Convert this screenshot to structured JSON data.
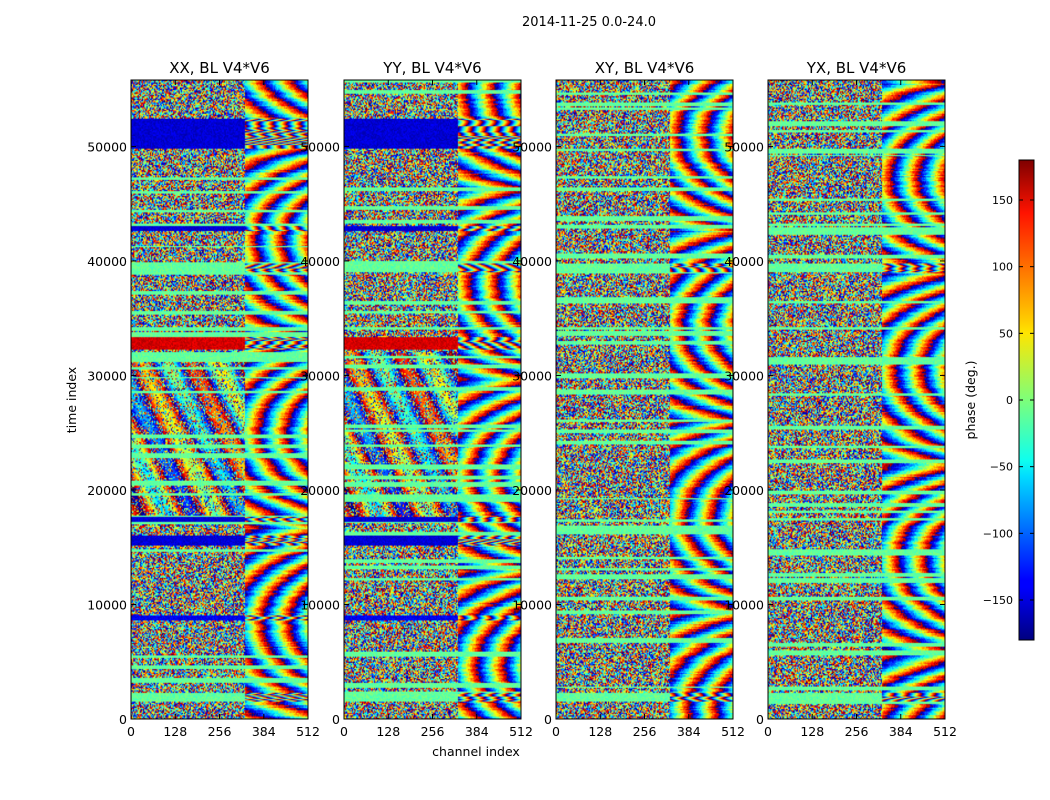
{
  "figure": {
    "suptitle": "2014-11-25 0.0-24.0"
  },
  "chart_data": {
    "type": "heatmap",
    "title": "2014-11-25 0.0-24.0",
    "xlabel": "channel index",
    "ylabel": "time index",
    "colorbar_label": "phase (deg.)",
    "colormap": "jet",
    "color_range": [
      -180,
      180
    ],
    "colorbar_ticks": [
      150,
      100,
      50,
      0,
      -50,
      -100,
      -150
    ],
    "colorbar_tick_labels": [
      "150",
      "100",
      "50",
      "0",
      "−50",
      "−100",
      "−150"
    ],
    "xlim": [
      0,
      512
    ],
    "ylim": [
      0,
      55800
    ],
    "x_ticks": [
      0,
      128,
      256,
      384,
      512
    ],
    "y_ticks": [
      0,
      10000,
      20000,
      30000,
      40000,
      50000
    ],
    "panels": [
      {
        "title": "XX, BL V4*V6",
        "polarization": "XX",
        "baseline": "V4*V6"
      },
      {
        "title": "YY, BL V4*V6",
        "polarization": "YY",
        "baseline": "V4*V6"
      },
      {
        "title": "XY, BL V4*V6",
        "polarization": "XY",
        "baseline": "V4*V6"
      },
      {
        "title": "YX, BL V4*V6",
        "polarization": "YX",
        "baseline": "V4*V6"
      }
    ],
    "features": {
      "flagged_time_bands_phase_deg": [
        {
          "time_range": [
            1500,
            2300
          ],
          "phase": -10,
          "panels": [
            "XX",
            "YY",
            "XY",
            "YX"
          ]
        },
        {
          "time_range": [
            8600,
            9100
          ],
          "phase": -140,
          "panels": [
            "XX",
            "YY"
          ]
        },
        {
          "time_range": [
            15200,
            16000
          ],
          "phase": -150,
          "panels": [
            "XX",
            "YY"
          ]
        },
        {
          "time_range": [
            17200,
            17700
          ],
          "phase": -150,
          "panels": [
            "XX",
            "YY"
          ]
        },
        {
          "time_range": [
            32300,
            33400
          ],
          "phase": 150,
          "panels": [
            "XX",
            "YY"
          ]
        },
        {
          "time_range": [
            39000,
            39800
          ],
          "phase": -10,
          "panels": [
            "XX",
            "YY",
            "XY",
            "YX"
          ]
        },
        {
          "time_range": [
            42600,
            43100
          ],
          "phase": -150,
          "panels": [
            "XX",
            "YY"
          ]
        },
        {
          "time_range": [
            49800,
            52400
          ],
          "phase": -150,
          "panels": [
            "XX",
            "YY"
          ]
        }
      ],
      "fringe_region_channels": [
        330,
        512
      ]
    }
  }
}
